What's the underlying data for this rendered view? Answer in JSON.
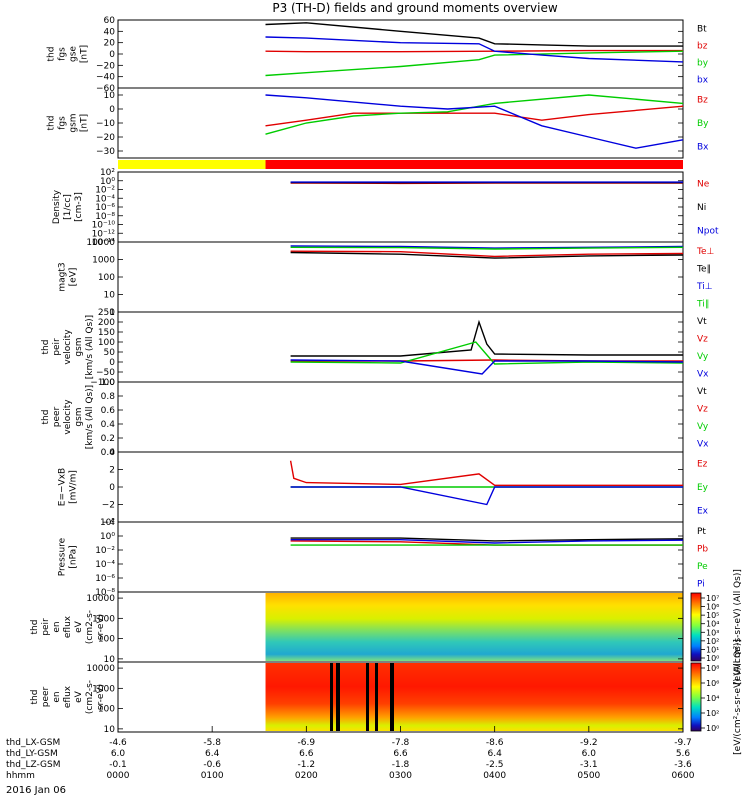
{
  "title": "P3 (TH-D) fields and ground moments overview",
  "date_label": "2016 Jan 06",
  "colors": {
    "black": "#000000",
    "red": "#e00000",
    "green": "#00cc00",
    "blue": "#0000dd",
    "yellow": "#ffff00",
    "mode_red": "#ff0000"
  },
  "mode_bar": {
    "segments": [
      {
        "x": [
          "00:00",
          "01:34"
        ],
        "color": "yellow"
      },
      {
        "x": [
          "01:34",
          "06:00"
        ],
        "color": "red"
      }
    ]
  },
  "xaxis": {
    "range": [
      "00:00",
      "06:00"
    ],
    "tick_times": [
      "00:00",
      "01:00",
      "02:00",
      "03:00",
      "04:00",
      "05:00",
      "06:00"
    ],
    "rows": [
      {
        "label": "thd_LX-GSM",
        "values": [
          "-4.6",
          "-5.8",
          "-6.9",
          "-7.8",
          "-8.6",
          "-9.2",
          "-9.7"
        ]
      },
      {
        "label": "thd_LY-GSM",
        "values": [
          "6.0",
          "6.4",
          "6.6",
          "6.6",
          "6.4",
          "6.0",
          "5.6"
        ]
      },
      {
        "label": "thd_LZ-GSM",
        "values": [
          "-0.1",
          "-0.6",
          "-1.2",
          "-1.8",
          "-2.5",
          "-3.1",
          "-3.6"
        ]
      },
      {
        "label": "hhmm",
        "values": [
          "0000",
          "0100",
          "0200",
          "0300",
          "0400",
          "0500",
          "0600"
        ]
      }
    ]
  },
  "chart_data": [
    {
      "type": "line",
      "id": "fgs_gse",
      "ylabel": [
        "thd",
        "fgs",
        "gse",
        "[nT]"
      ],
      "ylim": [
        -60,
        60
      ],
      "ytick_labels": [
        "60",
        "40",
        "20",
        "0",
        "−20",
        "−40",
        "−60"
      ],
      "yticks": [
        60,
        40,
        20,
        0,
        -20,
        -40,
        -60
      ],
      "x_start": "01:34",
      "x_end": "06:00",
      "series": [
        {
          "name": "Bt",
          "color": "black",
          "x": [
            "01:34",
            "02:00",
            "03:00",
            "03:50",
            "04:00",
            "04:30",
            "05:00",
            "06:00"
          ],
          "y": [
            52,
            55,
            40,
            28,
            18,
            16,
            14,
            14
          ]
        },
        {
          "name": "bz",
          "color": "red",
          "x": [
            "01:34",
            "02:00",
            "03:00",
            "04:00",
            "05:00",
            "06:00"
          ],
          "y": [
            5,
            4,
            4,
            5,
            6,
            6
          ]
        },
        {
          "name": "by",
          "color": "green",
          "x": [
            "01:34",
            "02:00",
            "03:00",
            "03:50",
            "04:00",
            "05:00",
            "06:00"
          ],
          "y": [
            -38,
            -33,
            -22,
            -10,
            -2,
            2,
            5
          ]
        },
        {
          "name": "bx",
          "color": "blue",
          "x": [
            "01:34",
            "02:00",
            "03:00",
            "03:50",
            "04:00",
            "04:30",
            "05:00",
            "06:00"
          ],
          "y": [
            30,
            28,
            20,
            18,
            5,
            -2,
            -8,
            -14
          ]
        }
      ]
    },
    {
      "type": "line",
      "id": "fgs_gsm",
      "ylabel": [
        "thd",
        "fgs",
        "gsm",
        "[nT]"
      ],
      "ylim": [
        -35,
        15
      ],
      "ytick_labels": [
        "10",
        "0",
        "−10",
        "−20",
        "−30"
      ],
      "yticks": [
        10,
        0,
        -10,
        -20,
        -30
      ],
      "x_start": "01:34",
      "x_end": "06:00",
      "series": [
        {
          "name": "Bz",
          "color": "red",
          "x": [
            "01:34",
            "02:00",
            "02:30",
            "03:00",
            "04:00",
            "04:30",
            "05:00",
            "06:00"
          ],
          "y": [
            -12,
            -8,
            -3,
            -3,
            -3,
            -8,
            -4,
            2
          ]
        },
        {
          "name": "By",
          "color": "green",
          "x": [
            "01:34",
            "02:00",
            "02:30",
            "03:00",
            "03:30",
            "04:00",
            "05:00",
            "06:00"
          ],
          "y": [
            -18,
            -10,
            -5,
            -3,
            -2,
            4,
            10,
            4
          ]
        },
        {
          "name": "Bx",
          "color": "blue",
          "x": [
            "01:34",
            "02:00",
            "03:00",
            "03:30",
            "04:00",
            "04:30",
            "05:00",
            "05:30",
            "06:00"
          ],
          "y": [
            10,
            8,
            2,
            0,
            2,
            -12,
            -20,
            -28,
            -22
          ]
        }
      ]
    },
    {
      "type": "line",
      "id": "density",
      "yscale": "log",
      "ylabel": [
        "Density",
        "[1/cc]",
        "[cm-3]"
      ],
      "ylim": [
        1e-14,
        100.0
      ],
      "ytick_labels": [
        "10²",
        "10⁰",
        "10⁻²",
        "10⁻⁴",
        "10⁻⁶",
        "10⁻⁸",
        "10⁻¹⁰",
        "10⁻¹²",
        "10⁻¹⁴"
      ],
      "yticks": [
        100.0,
        1.0,
        0.01,
        0.0001,
        1e-06,
        1e-08,
        1e-10,
        1e-12,
        1e-14
      ],
      "x_start": "01:50",
      "x_end": "06:00",
      "series": [
        {
          "name": "Ne",
          "color": "red",
          "x": [
            "01:50",
            "02:00",
            "03:00",
            "04:00",
            "05:00",
            "06:00"
          ],
          "y": [
            0.3,
            0.3,
            0.25,
            0.3,
            0.3,
            0.3
          ]
        },
        {
          "name": "Ni",
          "color": "black",
          "x": [
            "01:50",
            "02:00",
            "03:00",
            "04:00",
            "05:00",
            "06:00"
          ],
          "y": [
            0.4,
            0.4,
            0.35,
            0.4,
            0.4,
            0.35
          ]
        },
        {
          "name": "Npot",
          "color": "blue",
          "x": [
            "01:50",
            "06:00"
          ],
          "y": [
            0.5,
            0.5
          ]
        }
      ]
    },
    {
      "type": "line",
      "id": "temperature",
      "yscale": "log",
      "ylabel": [
        "magt3",
        "[eV]"
      ],
      "ylim": [
        1,
        10000
      ],
      "ytick_labels": [
        "10000",
        "1000",
        "100",
        "10",
        "1"
      ],
      "yticks": [
        10000,
        1000,
        100,
        10,
        1
      ],
      "x_start": "01:50",
      "x_end": "06:00",
      "series": [
        {
          "name": "Te⊥",
          "color": "red",
          "x": [
            "01:50",
            "03:00",
            "04:00",
            "05:00",
            "06:00"
          ],
          "y": [
            3000,
            2800,
            1500,
            2000,
            2200
          ]
        },
        {
          "name": "Te∥",
          "color": "black",
          "x": [
            "01:50",
            "03:00",
            "04:00",
            "05:00",
            "06:00"
          ],
          "y": [
            2500,
            2000,
            1200,
            1600,
            1800
          ]
        },
        {
          "name": "Ti⊥",
          "color": "blue",
          "x": [
            "01:50",
            "03:00",
            "04:00",
            "05:00",
            "06:00"
          ],
          "y": [
            6000,
            5500,
            4500,
            5000,
            5500
          ]
        },
        {
          "name": "Ti∥",
          "color": "green",
          "x": [
            "01:50",
            "03:00",
            "04:00",
            "05:00",
            "06:00"
          ],
          "y": [
            5000,
            4800,
            4000,
            4500,
            5000
          ]
        }
      ]
    },
    {
      "type": "line",
      "id": "ion_velocity",
      "ylabel": [
        "thd",
        "peir",
        "velocity",
        "gsm",
        "[km/s (All Qs)]"
      ],
      "ylim": [
        -100,
        250
      ],
      "ytick_labels": [
        "250",
        "200",
        "150",
        "100",
        "50",
        "0",
        "−50",
        "−100"
      ],
      "yticks": [
        250,
        200,
        150,
        100,
        50,
        0,
        -50,
        -100
      ],
      "x_start": "01:50",
      "x_end": "06:00",
      "series": [
        {
          "name": "Vt",
          "color": "black",
          "x": [
            "01:50",
            "03:00",
            "03:45",
            "03:50",
            "03:55",
            "04:00",
            "05:00",
            "06:00"
          ],
          "y": [
            30,
            30,
            60,
            200,
            90,
            40,
            35,
            35
          ]
        },
        {
          "name": "Vz",
          "color": "red",
          "x": [
            "01:50",
            "03:00",
            "04:00",
            "05:00",
            "06:00"
          ],
          "y": [
            5,
            5,
            10,
            5,
            5
          ]
        },
        {
          "name": "Vy",
          "color": "green",
          "x": [
            "01:50",
            "03:00",
            "03:48",
            "04:00",
            "05:00",
            "06:00"
          ],
          "y": [
            0,
            -5,
            100,
            -10,
            0,
            -5
          ]
        },
        {
          "name": "Vx",
          "color": "blue",
          "x": [
            "01:50",
            "03:00",
            "03:52",
            "04:00",
            "05:00",
            "06:00"
          ],
          "y": [
            10,
            5,
            -60,
            5,
            5,
            0
          ]
        }
      ]
    },
    {
      "type": "line",
      "id": "electron_velocity",
      "ylabel": [
        "thd",
        "peer",
        "velocity",
        "gsm",
        "[km/s (All Qs)]"
      ],
      "ylim": [
        0,
        1
      ],
      "ytick_labels": [
        "1.0",
        "0.8",
        "0.6",
        "0.4",
        "0.2",
        "0.0"
      ],
      "yticks": [
        1.0,
        0.8,
        0.6,
        0.4,
        0.2,
        0.0
      ],
      "series": [
        {
          "name": "Vt",
          "color": "black",
          "x": [],
          "y": []
        },
        {
          "name": "Vz",
          "color": "red",
          "x": [],
          "y": []
        },
        {
          "name": "Vy",
          "color": "green",
          "x": [],
          "y": []
        },
        {
          "name": "Vx",
          "color": "blue",
          "x": [],
          "y": []
        }
      ]
    },
    {
      "type": "line",
      "id": "efield",
      "ylabel": [
        "E=−VxB",
        "[mV/m]"
      ],
      "ylim": [
        -4,
        4
      ],
      "ytick_labels": [
        "4",
        "2",
        "0",
        "−2",
        "−4"
      ],
      "yticks": [
        4,
        2,
        0,
        -2,
        -4
      ],
      "x_start": "01:50",
      "x_end": "06:00",
      "series": [
        {
          "name": "Ez",
          "color": "red",
          "x": [
            "01:50",
            "01:52",
            "02:00",
            "03:00",
            "03:50",
            "04:00",
            "05:00",
            "06:00"
          ],
          "y": [
            3,
            1,
            0.5,
            0.3,
            1.5,
            0.2,
            0.2,
            0.2
          ]
        },
        {
          "name": "Ey",
          "color": "green",
          "x": [
            "01:50",
            "03:00",
            "04:00",
            "05:00",
            "06:00"
          ],
          "y": [
            0,
            0,
            0,
            0,
            0
          ]
        },
        {
          "name": "Ex",
          "color": "blue",
          "x": [
            "01:50",
            "03:00",
            "03:55",
            "04:00",
            "05:00",
            "06:00"
          ],
          "y": [
            0,
            0,
            -2,
            0,
            0,
            0
          ]
        }
      ]
    },
    {
      "type": "line",
      "id": "pressure",
      "yscale": "log",
      "ylabel": [
        "Pressure",
        "[nPa]"
      ],
      "ylim": [
        1e-08,
        100.0
      ],
      "ytick_labels": [
        "10²",
        "10⁰",
        "10⁻²",
        "10⁻⁴",
        "10⁻⁶",
        "10⁻⁸"
      ],
      "yticks": [
        100.0,
        1.0,
        0.01,
        0.0001,
        1e-06,
        1e-08
      ],
      "x_start": "01:50",
      "x_end": "06:00",
      "series": [
        {
          "name": "Pt",
          "color": "black",
          "x": [
            "01:50",
            "03:00",
            "04:00",
            "05:00",
            "06:00"
          ],
          "y": [
            0.5,
            0.5,
            0.2,
            0.3,
            0.4
          ]
        },
        {
          "name": "Pb",
          "color": "red",
          "x": [
            "01:50",
            "03:00",
            "04:00",
            "05:00",
            "06:00"
          ],
          "y": [
            0.2,
            0.15,
            0.05,
            0.05,
            0.05
          ]
        },
        {
          "name": "Pe",
          "color": "green",
          "x": [
            "01:50",
            "03:00",
            "04:00",
            "05:00",
            "06:00"
          ],
          "y": [
            0.05,
            0.05,
            0.05,
            0.05,
            0.05
          ]
        },
        {
          "name": "Pi",
          "color": "blue",
          "x": [
            "01:50",
            "03:00",
            "04:00",
            "05:00",
            "06:00"
          ],
          "y": [
            0.3,
            0.3,
            0.1,
            0.2,
            0.25
          ]
        }
      ]
    },
    {
      "type": "heatmap",
      "id": "ion_spectrogram",
      "yscale": "log",
      "ylabel": [
        "thd",
        "peir",
        "en",
        "eflux",
        "eV",
        "(cm2-s-",
        "sr-eV)"
      ],
      "ylim": [
        7,
        20000
      ],
      "ytick_labels": [
        "10000",
        "1000",
        "100",
        "10"
      ],
      "yticks": [
        10000,
        1000,
        100,
        10
      ],
      "x_start": "01:34",
      "x_end": "06:00",
      "colorbar": {
        "label": "[eV/(cm²-s-sr-eV) (All Qs)]",
        "ticks": [
          "10⁷",
          "10⁶",
          "10⁵",
          "10⁴",
          "10³",
          "10²",
          "10¹",
          "10⁰"
        ]
      }
    },
    {
      "type": "heatmap",
      "id": "electron_spectrogram",
      "yscale": "log",
      "ylabel": [
        "thd",
        "peer",
        "en",
        "eflux",
        "eV",
        "(cm2-s-",
        "sr-eV)"
      ],
      "ylim": [
        7,
        20000
      ],
      "ytick_labels": [
        "10000",
        "1000",
        "100",
        "10"
      ],
      "yticks": [
        10000,
        1000,
        100,
        10
      ],
      "x_start": "01:34",
      "x_end": "06:00",
      "colorbar": {
        "label": "[eV/(cm²-s-sr-eV) (All Qs)]",
        "ticks": [
          "10⁸",
          "10⁶",
          "10⁴",
          "10²",
          "10⁰"
        ]
      }
    }
  ]
}
